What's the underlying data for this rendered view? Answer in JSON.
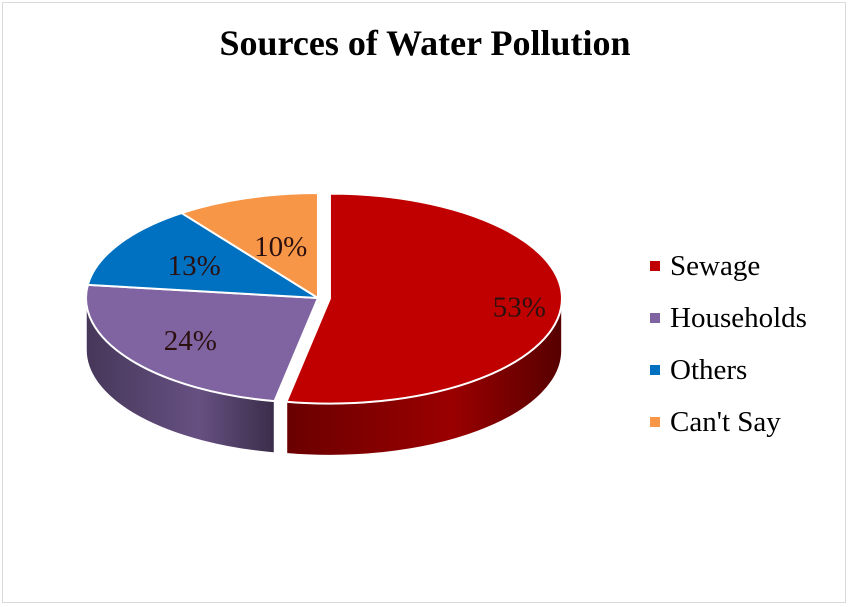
{
  "chart_data": {
    "type": "pie",
    "title": "Sources of Water Pollution",
    "slices": [
      {
        "label": "Sewage",
        "value": 53,
        "display": "53%",
        "color": "#c00000"
      },
      {
        "label": "Households",
        "value": 24,
        "display": "24%",
        "color": "#8064a2"
      },
      {
        "label": "Others",
        "value": 13,
        "display": "13%",
        "color": "#0070c0"
      },
      {
        "label": "Can't Say",
        "value": 10,
        "display": "10%",
        "color": "#f79646"
      }
    ],
    "legend_position": "right"
  }
}
